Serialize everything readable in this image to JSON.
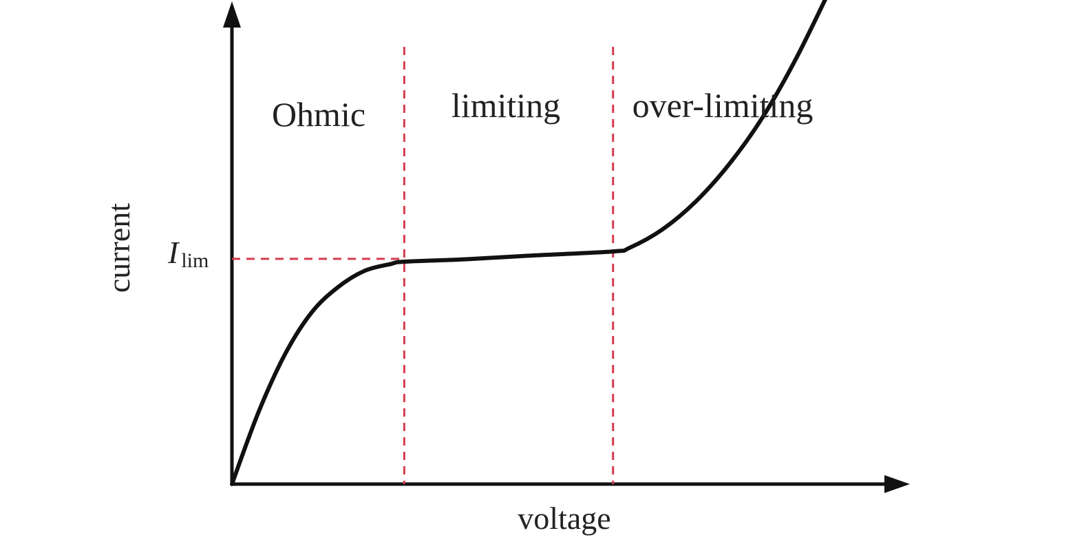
{
  "chart_data": {
    "type": "line",
    "title": "",
    "xlabel": "voltage",
    "ylabel": "current",
    "xlim": [
      0,
      10
    ],
    "ylim": [
      0,
      10
    ],
    "grid": false,
    "legend": "none",
    "regions": [
      {
        "label": "Ohmic",
        "x_start": 0,
        "x_end": 2.6
      },
      {
        "label": "limiting",
        "x_start": 2.6,
        "x_end": 5.75
      },
      {
        "label": "over-limiting",
        "x_start": 5.75,
        "x_end": 10
      }
    ],
    "boundaries": [
      2.6,
      5.75
    ],
    "reference_line": {
      "value": 4.86,
      "label_main": "I",
      "label_sub": "lim"
    },
    "series": [
      {
        "values": [
          [
            0,
            0
          ],
          [
            0.4,
            1.55
          ],
          [
            0.8,
            2.8
          ],
          [
            1.2,
            3.7
          ],
          [
            1.6,
            4.25
          ],
          [
            2.0,
            4.6
          ],
          [
            2.4,
            4.75
          ],
          [
            2.6,
            4.8
          ],
          [
            3.5,
            4.85
          ],
          [
            4.5,
            4.93
          ],
          [
            5.75,
            5.02
          ],
          [
            6.0,
            5.1
          ],
          [
            6.5,
            5.5
          ],
          [
            7.0,
            6.1
          ],
          [
            7.5,
            6.9
          ],
          [
            8.0,
            7.9
          ],
          [
            8.5,
            9.15
          ],
          [
            9.0,
            10.6
          ]
        ]
      }
    ],
    "colors": {
      "curve": "#111111",
      "axes": "#111111",
      "dashed": "#d63a4e"
    }
  }
}
